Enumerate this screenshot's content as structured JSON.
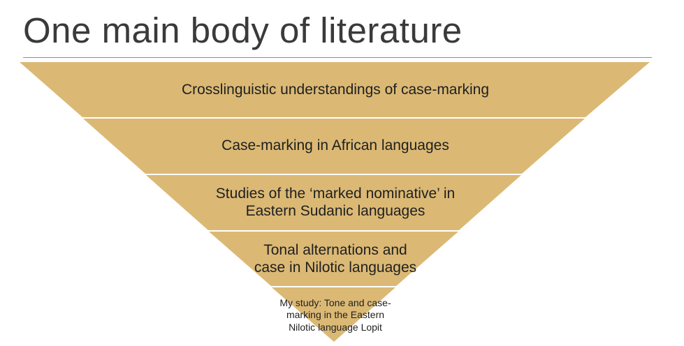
{
  "slide": {
    "title": "One main body of literature"
  },
  "colors": {
    "tier_fill": "#dbb975",
    "separator": "#ffffff",
    "title_text": "#3a3a3a",
    "body_text": "#1f1f1f"
  },
  "funnel": {
    "tiers": [
      {
        "label": "Crosslinguistic understandings of case-marking"
      },
      {
        "label": "Case-marking in African languages"
      },
      {
        "label": "Studies of the ‘marked nominative’ in Eastern Sudanic languages"
      },
      {
        "label": "Tonal alternations and case in Nilotic languages"
      },
      {
        "label": "My study: Tone and case-marking in the Eastern Nilotic language Lopit"
      }
    ]
  }
}
